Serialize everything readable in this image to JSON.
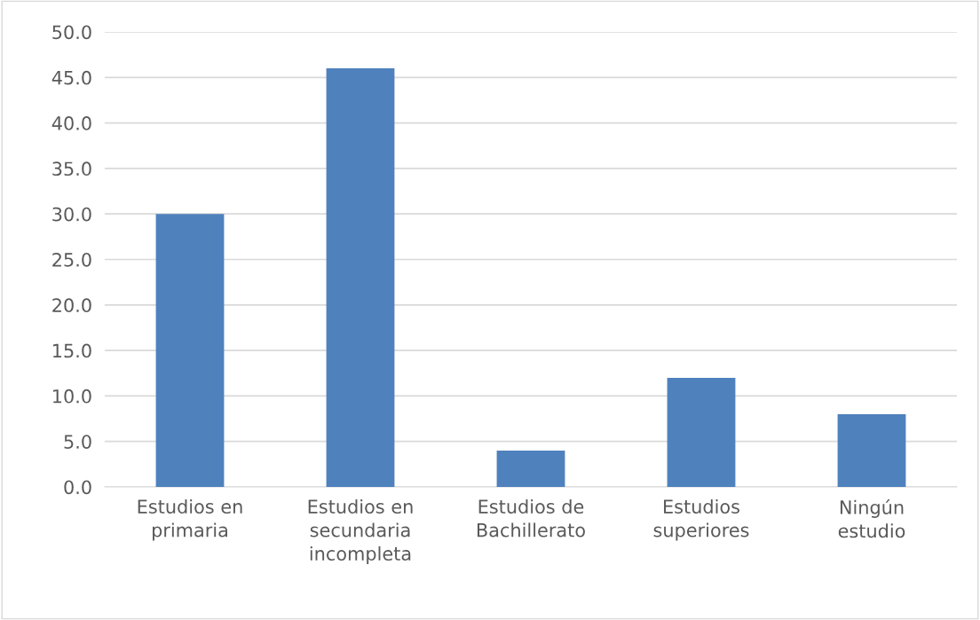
{
  "chart_data": {
    "type": "bar",
    "categories": [
      "Estudios en\nprimaria",
      "Estudios en\nsecundaria\nincompleta",
      "Estudios de\nBachillerato",
      "Estudios\nsuperiores",
      "Ningún\nestudio"
    ],
    "values": [
      30,
      46,
      4,
      12,
      8
    ],
    "color": "#4f81bd",
    "ylim": [
      0,
      50
    ],
    "yticks": [
      {
        "value": 0,
        "label": "0.0"
      },
      {
        "value": 5,
        "label": "5.0"
      },
      {
        "value": 10,
        "label": "10.0"
      },
      {
        "value": 15,
        "label": "15.0"
      },
      {
        "value": 20,
        "label": "20.0"
      },
      {
        "value": 25,
        "label": "25.0"
      },
      {
        "value": 30,
        "label": "30.0"
      },
      {
        "value": 35,
        "label": "35.0"
      },
      {
        "value": 40,
        "label": "40.0"
      },
      {
        "value": 45,
        "label": "45.0"
      },
      {
        "value": 50,
        "label": "50.0"
      }
    ],
    "grid": "y",
    "legend": false
  }
}
